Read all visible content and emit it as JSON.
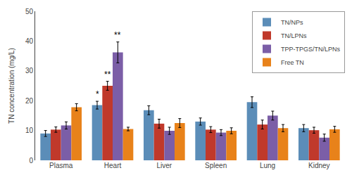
{
  "chart_data": {
    "type": "bar",
    "categories": [
      "Plasma",
      "Heart",
      "Liver",
      "Spleen",
      "Lung",
      "Kidney"
    ],
    "series": [
      {
        "name": "TN/NPs",
        "color": "#5B8DB8",
        "values": [
          9.0,
          18.5,
          16.8,
          13.0,
          19.5,
          10.8
        ],
        "errors": [
          1.0,
          1.3,
          1.5,
          1.2,
          1.8,
          1.2
        ]
      },
      {
        "name": "TN/LPNs",
        "color": "#C0392B",
        "values": [
          10.3,
          25.0,
          12.3,
          10.3,
          12.0,
          10.1
        ],
        "errors": [
          0.9,
          1.5,
          1.5,
          1.0,
          1.5,
          1.0
        ]
      },
      {
        "name": "TPP-TPGS/TN/LPNs",
        "color": "#7B5EA7",
        "values": [
          11.7,
          36.2,
          9.9,
          9.3,
          15.0,
          7.6
        ],
        "errors": [
          1.2,
          3.5,
          1.2,
          1.0,
          1.5,
          1.2
        ]
      },
      {
        "name": "Free TN",
        "color": "#E8821A",
        "values": [
          17.8,
          10.5,
          12.5,
          9.9,
          10.8,
          10.4
        ],
        "errors": [
          1.2,
          0.6,
          1.5,
          1.0,
          1.2,
          1.0
        ]
      }
    ],
    "annotations": [
      {
        "category": "Heart",
        "series": "TN/NPs",
        "text": "*"
      },
      {
        "category": "Heart",
        "series": "TN/LPNs",
        "text": "**"
      },
      {
        "category": "Heart",
        "series": "TPP-TPGS/TN/LPNs",
        "text": "**"
      }
    ],
    "ylabel": "TN concentration (mg/L)",
    "ylim": [
      0,
      50
    ],
    "yticks": [
      0,
      10,
      20,
      30,
      40,
      50
    ],
    "legend": "upper right",
    "grid": false
  }
}
